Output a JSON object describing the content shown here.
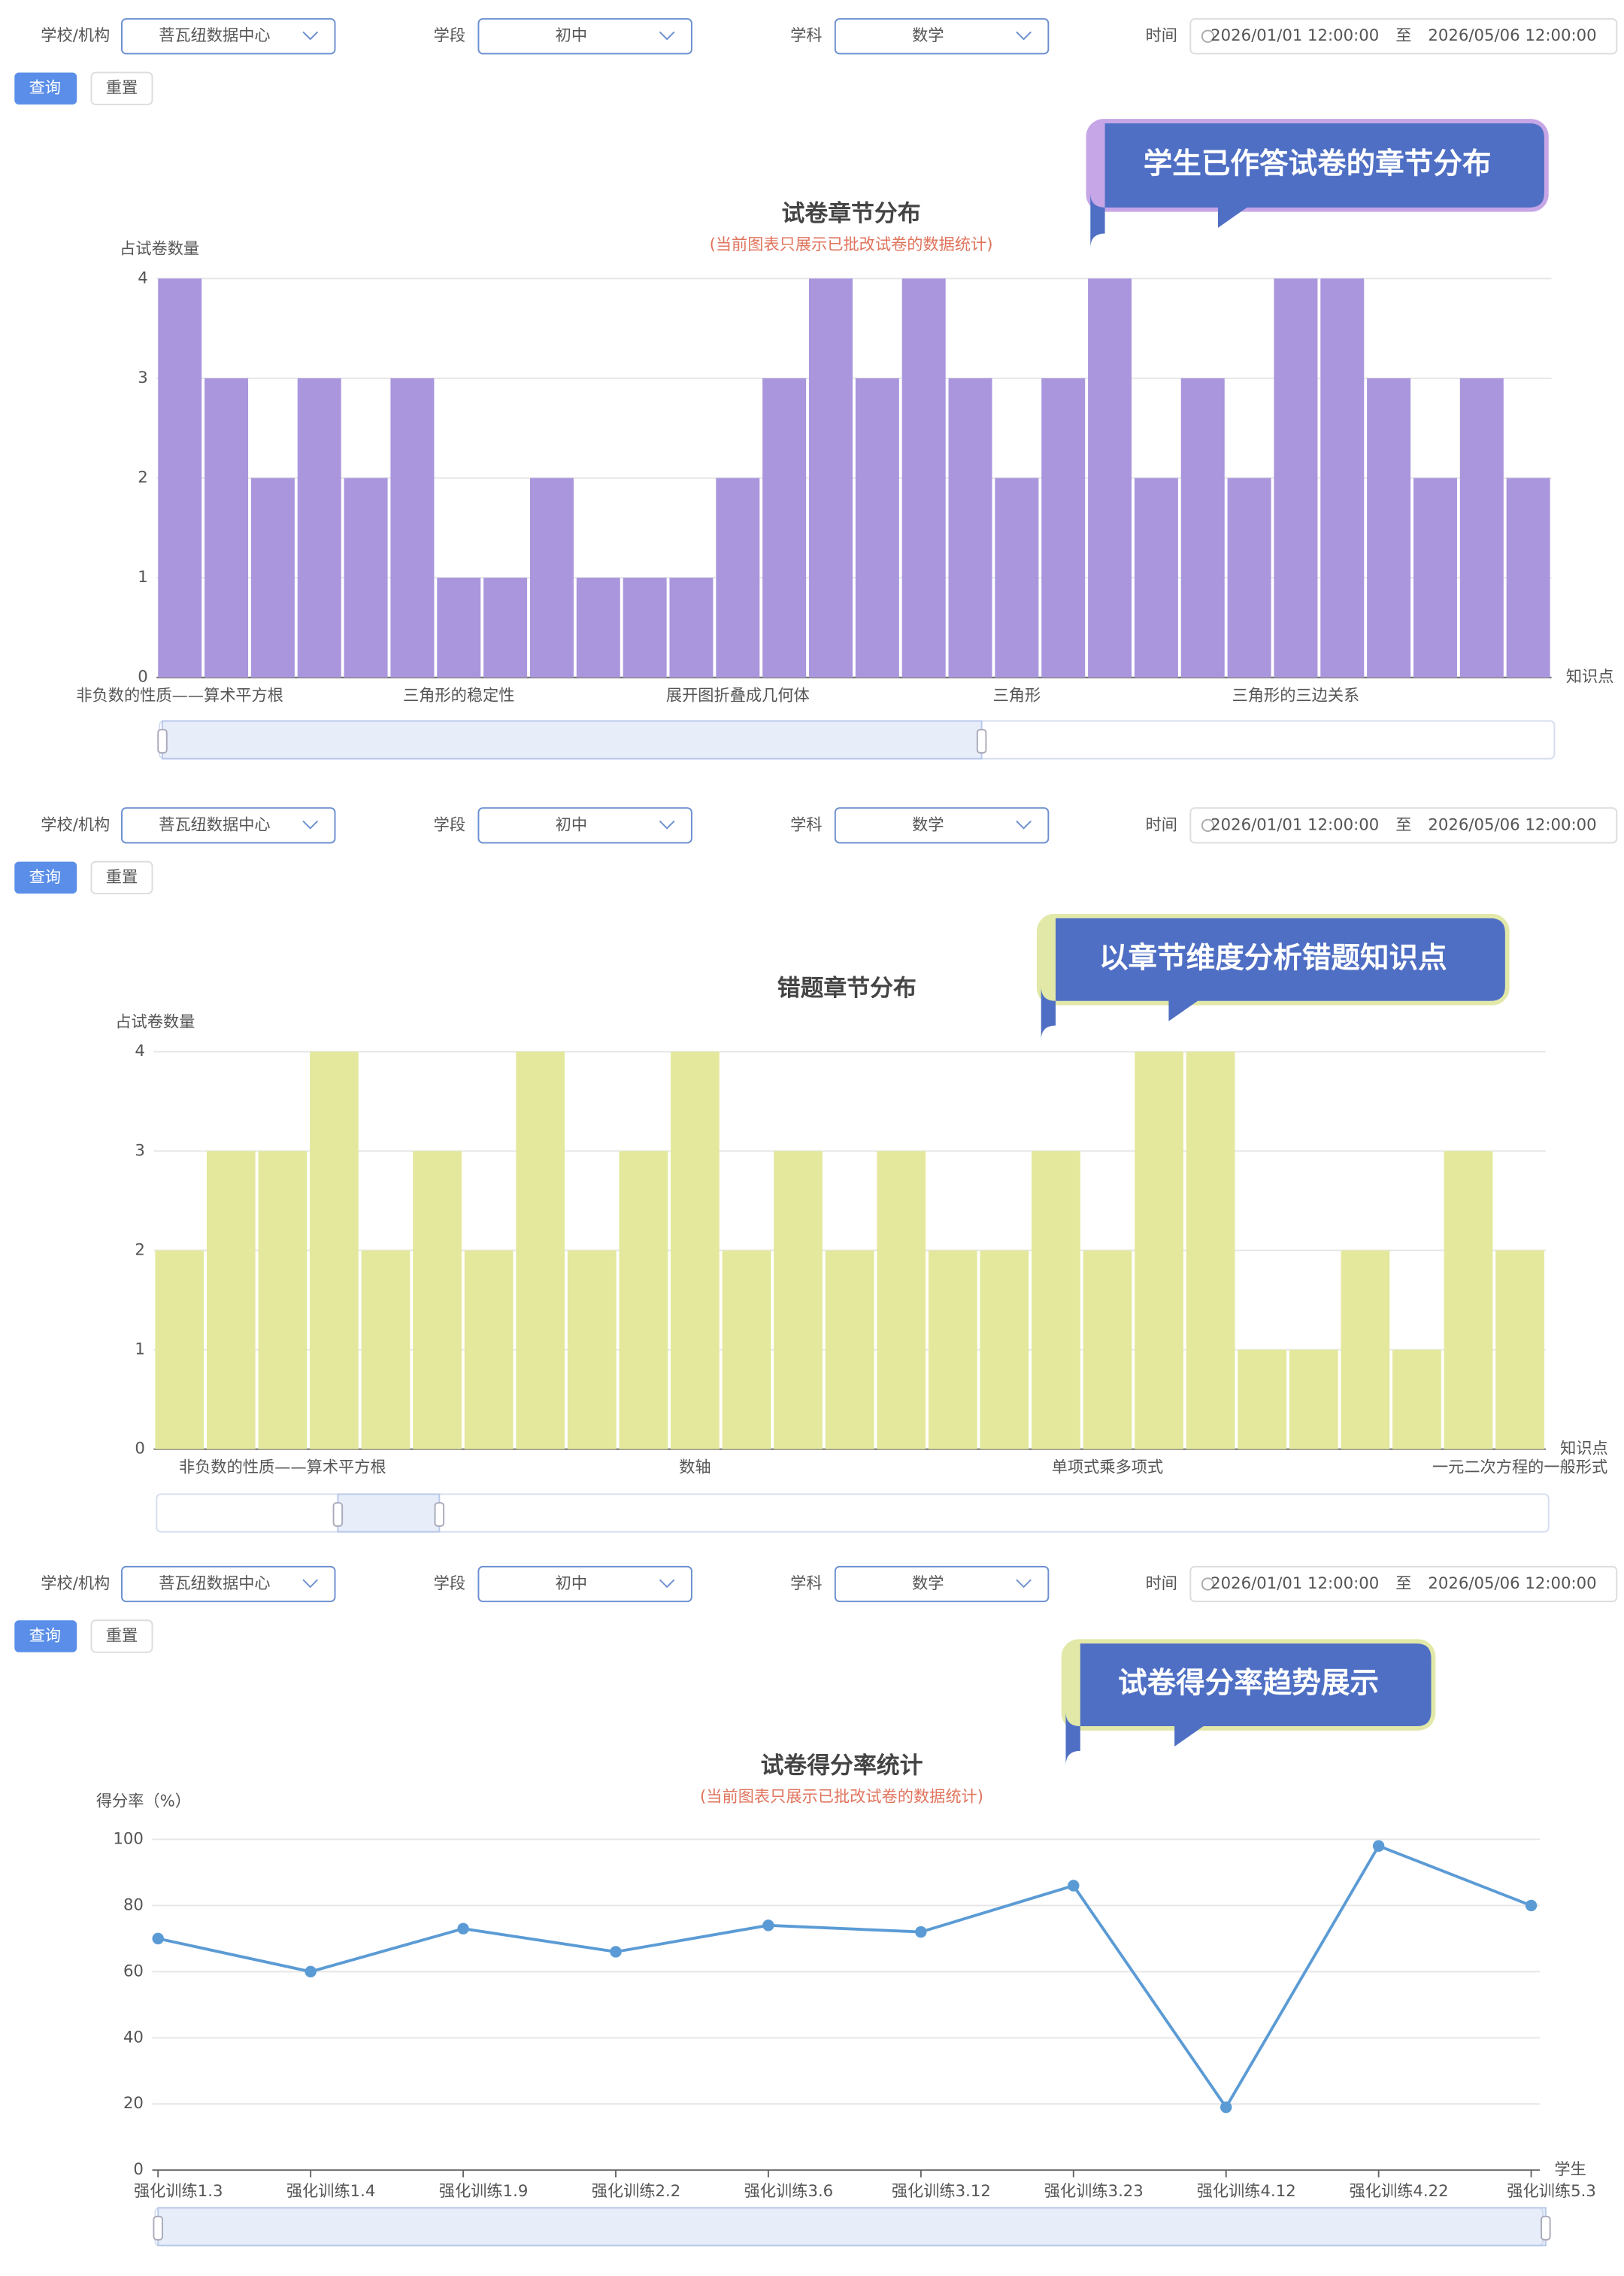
{
  "filters": [
    {
      "school_label": "学校/机构",
      "school": "菩瓦纽数据中心",
      "stage_label": "学段",
      "stage": "初中",
      "subject_label": "学科",
      "subject": "数学",
      "time_label": "时间",
      "start": "2026/01/01 12:00:00",
      "to": "至",
      "end": "2026/05/06 12:00:00",
      "query": "查询",
      "reset": "重置"
    },
    {
      "school_label": "学校/机构",
      "school": "菩瓦纽数据中心",
      "stage_label": "学段",
      "stage": "初中",
      "subject_label": "学科",
      "subject": "数学",
      "time_label": "时间",
      "start": "2026/01/01 12:00:00",
      "to": "至",
      "end": "2026/05/06 12:00:00",
      "query": "查询",
      "reset": "重置"
    },
    {
      "school_label": "学校/机构",
      "school": "菩瓦纽数据中心",
      "stage_label": "学段",
      "stage": "初中",
      "subject_label": "学科",
      "subject": "数学",
      "time_label": "时间",
      "start": "2026/01/01 12:00:00",
      "to": "至",
      "end": "2026/05/06 12:00:00",
      "query": "查询",
      "reset": "重置"
    }
  ],
  "callouts": [
    "学生已作答试卷的章节分布",
    "以章节维度分析错题知识点",
    "试卷得分率趋势展示"
  ],
  "chart_data": [
    {
      "type": "bar",
      "title": "试卷章节分布",
      "subtitle": "(当前图表只展示已批改试卷的数据统计)",
      "y_label": "占试卷数量",
      "x_label": "知识点",
      "categories": [
        "非负数的性质——算术平方根",
        null,
        null,
        null,
        null,
        null,
        "三角形的稳定性",
        null,
        null,
        null,
        null,
        null,
        "展开图折叠成几何体",
        null,
        null,
        null,
        null,
        null,
        "三角形",
        null,
        null,
        null,
        null,
        null,
        "三角形的三边关系",
        null,
        null,
        null,
        null,
        null
      ],
      "values": [
        4,
        3,
        2,
        3,
        2,
        3,
        1,
        1,
        2,
        1,
        1,
        1,
        2,
        3,
        4,
        3,
        4,
        3,
        2,
        3,
        4,
        2,
        3,
        2,
        4,
        4,
        3,
        2,
        3,
        2
      ],
      "color": "#a996dd",
      "ylim": [
        0,
        4
      ],
      "yticks": [
        0,
        1,
        2,
        3,
        4
      ],
      "grid": true
    },
    {
      "type": "bar",
      "title": "错题章节分布",
      "y_label": "占试卷数量",
      "x_label": "知识点",
      "categories": [
        null,
        null,
        "非负数的性质——算术平方根",
        null,
        null,
        null,
        null,
        null,
        null,
        null,
        "数轴",
        null,
        null,
        null,
        null,
        null,
        null,
        null,
        "单项式乘多项式",
        null,
        null,
        null,
        null,
        null,
        null,
        null,
        "一元二次方程的一般形式"
      ],
      "values": [
        2,
        3,
        3,
        4,
        2,
        3,
        2,
        4,
        2,
        3,
        4,
        2,
        3,
        2,
        3,
        2,
        2,
        3,
        2,
        4,
        4,
        1,
        1,
        2,
        1,
        3,
        2
      ],
      "color": "#e3e89c",
      "ylim": [
        0,
        4
      ],
      "yticks": [
        0,
        1,
        2,
        3,
        4
      ],
      "grid": true
    },
    {
      "type": "line",
      "title": "试卷得分率统计",
      "subtitle": "(当前图表只展示已批改试卷的数据统计)",
      "y_label": "得分率（%）",
      "x_label": "学生",
      "categories": [
        "强化训练1.3",
        "强化训练1.4",
        "强化训练1.9",
        "强化训练2.2",
        "强化训练3.6",
        "强化训练3.12",
        "强化训练3.23",
        "强化训练4.12",
        "强化训练4.22",
        "强化训练5.3"
      ],
      "values": [
        70,
        60,
        73,
        66,
        74,
        72,
        86,
        19,
        98,
        80
      ],
      "color": "#5b9bd5",
      "ylim": [
        0,
        100
      ],
      "yticks": [
        0,
        20,
        40,
        60,
        80,
        100
      ],
      "grid": true
    }
  ]
}
